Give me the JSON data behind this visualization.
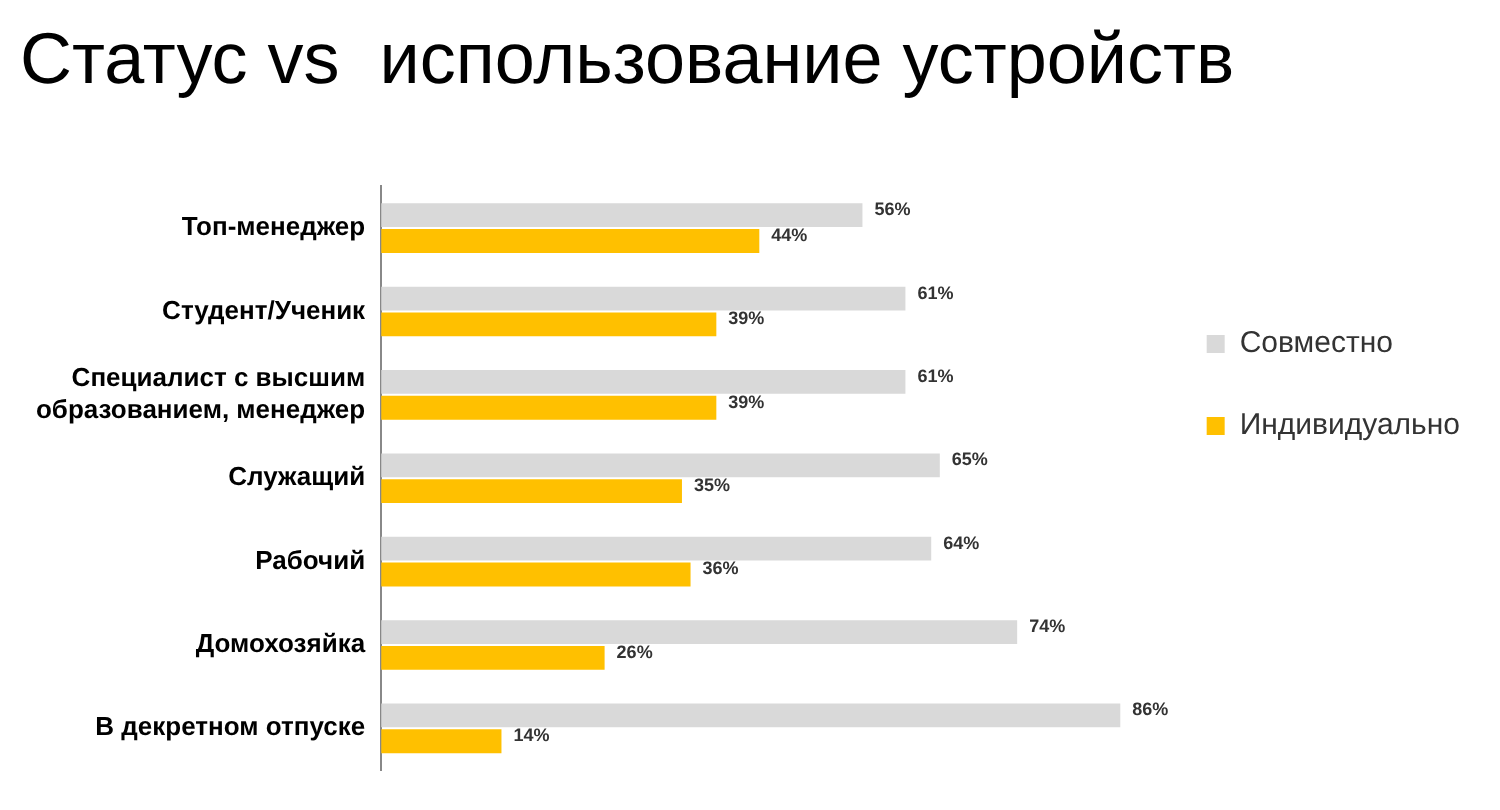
{
  "chart_data": {
    "type": "bar",
    "orientation": "horizontal",
    "title": "Статус vs  использование устройств",
    "categories": [
      "Топ-менеджер",
      "Студент/Ученик",
      "Специалист с высшим образованием, менеджер",
      "Служащий",
      "Рабочий",
      "Домохозяйка",
      "В декретном отпуске"
    ],
    "series": [
      {
        "name": "Совместно",
        "color": "#d9d9d9",
        "values": [
          56,
          61,
          61,
          65,
          64,
          74,
          86
        ],
        "value_labels": [
          "56%",
          "61%",
          "61%",
          "65%",
          "64%",
          "74%",
          "86%"
        ]
      },
      {
        "name": "Индивидуально",
        "color": "#ffc000",
        "values": [
          44,
          39,
          39,
          35,
          36,
          26,
          14
        ],
        "value_labels": [
          "44%",
          "39%",
          "39%",
          "35%",
          "36%",
          "26%",
          "14%"
        ]
      }
    ],
    "legend": "right",
    "tick_labels": "y"
  }
}
